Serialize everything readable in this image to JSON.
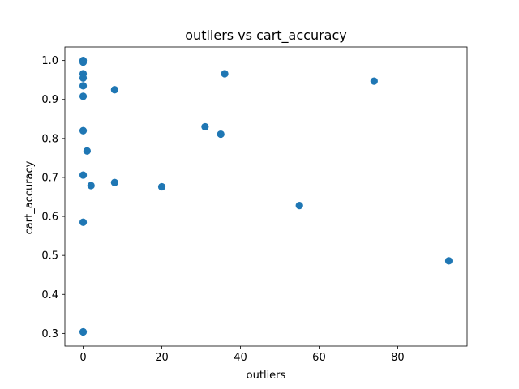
{
  "chart_data": {
    "type": "scatter",
    "title": "outliers vs cart_accuracy",
    "xlabel": "outliers",
    "ylabel": "cart_accuracy",
    "xlim": [
      -4.65,
      97.65
    ],
    "ylim": [
      0.2675,
      1.0346
    ],
    "xticks": [
      0,
      20,
      40,
      60,
      80
    ],
    "xtick_labels": [
      "0",
      "20",
      "40",
      "60",
      "80"
    ],
    "yticks": [
      0.3,
      0.4,
      0.5,
      0.6,
      0.7,
      0.8,
      0.9,
      1.0
    ],
    "ytick_labels": [
      "0.3",
      "0.4",
      "0.5",
      "0.6",
      "0.7",
      "0.8",
      "0.9",
      "1.0"
    ],
    "grid": false,
    "marker_color": "#1f77b4",
    "points": [
      {
        "x": 0,
        "y": 1.0
      },
      {
        "x": 0,
        "y": 0.996
      },
      {
        "x": 0,
        "y": 0.966
      },
      {
        "x": 0,
        "y": 0.955
      },
      {
        "x": 0,
        "y": 0.935
      },
      {
        "x": 0,
        "y": 0.908
      },
      {
        "x": 0,
        "y": 0.82
      },
      {
        "x": 0,
        "y": 0.706
      },
      {
        "x": 0,
        "y": 0.585
      },
      {
        "x": 0,
        "y": 0.304
      },
      {
        "x": 1,
        "y": 0.768
      },
      {
        "x": 2,
        "y": 0.679
      },
      {
        "x": 8,
        "y": 0.925
      },
      {
        "x": 8,
        "y": 0.687
      },
      {
        "x": 20,
        "y": 0.676
      },
      {
        "x": 31,
        "y": 0.83
      },
      {
        "x": 35,
        "y": 0.811
      },
      {
        "x": 36,
        "y": 0.966
      },
      {
        "x": 55,
        "y": 0.628
      },
      {
        "x": 74,
        "y": 0.947
      },
      {
        "x": 93,
        "y": 0.486
      }
    ]
  }
}
